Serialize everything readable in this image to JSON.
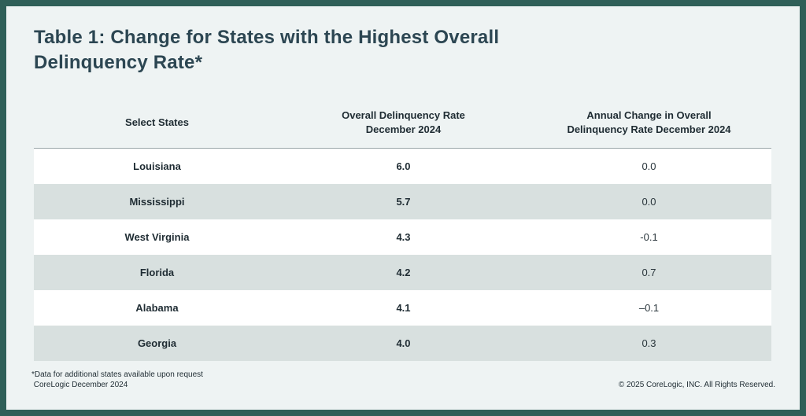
{
  "title": {
    "line1": "Table 1: Change for States with the Highest Overall",
    "line2": "Delinquency Rate*"
  },
  "table": {
    "headers": [
      {
        "line1": "Select States",
        "line2": ""
      },
      {
        "line1": "Overall Delinquency Rate",
        "line2": "December 2024"
      },
      {
        "line1": "Annual Change in Overall",
        "line2": "Delinquency Rate December 2024"
      }
    ],
    "rows": [
      {
        "state": "Louisiana",
        "rate": "6.0",
        "change": "0.0"
      },
      {
        "state": "Mississippi",
        "rate": "5.7",
        "change": "0.0"
      },
      {
        "state": "West Virginia",
        "rate": "4.3",
        "change": "-0.1"
      },
      {
        "state": "Florida",
        "rate": "4.2",
        "change": "0.7"
      },
      {
        "state": "Alabama",
        "rate": "4.1",
        "change": "–0.1"
      },
      {
        "state": "Georgia",
        "rate": "4.0",
        "change": "0.3"
      }
    ]
  },
  "footnote": {
    "line1": "*Data for additional states available upon request",
    "line2": " CoreLogic December 2024"
  },
  "copyright": "© 2025 CoreLogic, INC. All Rights Reserved."
}
